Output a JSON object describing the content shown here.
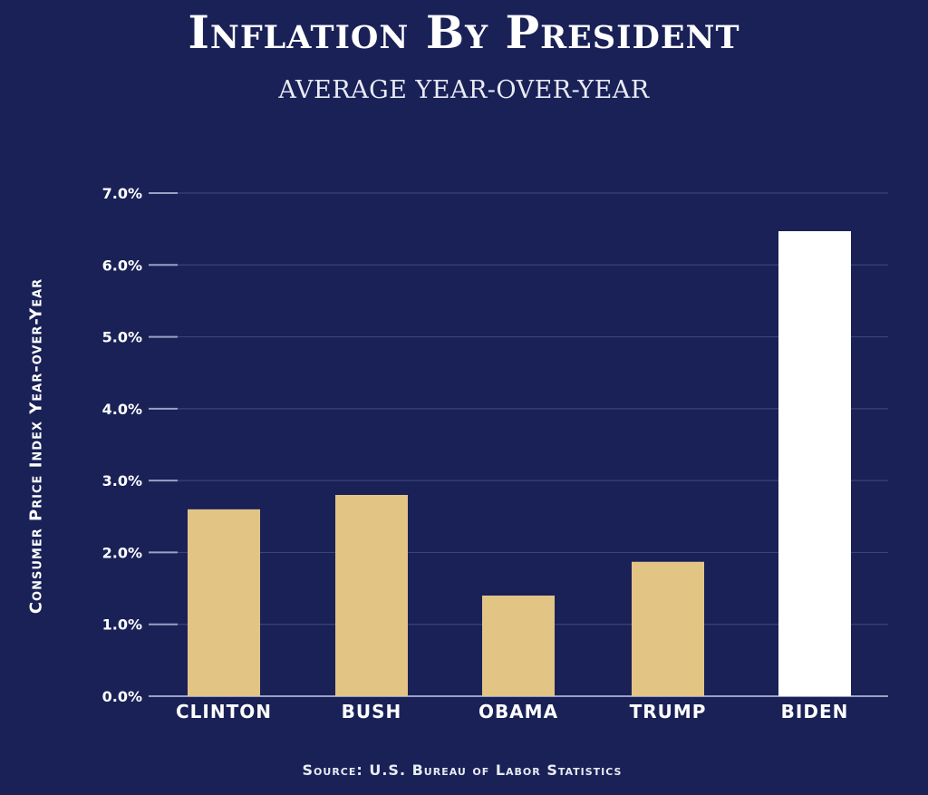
{
  "colors": {
    "background": "#192157",
    "bar": "#e2c485",
    "highlight_bar": "#ffffff",
    "gridline": "#3a4478",
    "tick": "#9aa1c2"
  },
  "chart_data": {
    "type": "bar",
    "title": "Inflation By President",
    "subtitle": "AVERAGE YEAR-OVER-YEAR",
    "xlabel": "",
    "ylabel": "Consumer Price Index Year-over-Year",
    "categories": [
      "CLINTON",
      "BUSH",
      "OBAMA",
      "TRUMP",
      "BIDEN"
    ],
    "values": [
      2.6,
      2.8,
      1.4,
      1.87,
      6.47
    ],
    "highlight_index": 4,
    "ylim": [
      0,
      7
    ],
    "yticks": [
      "0.0%",
      "1.0%",
      "2.0%",
      "3.0%",
      "4.0%",
      "5.0%",
      "6.0%",
      "7.0%"
    ],
    "grid": true,
    "source": "Source: U.S. Bureau of Labor Statistics"
  }
}
